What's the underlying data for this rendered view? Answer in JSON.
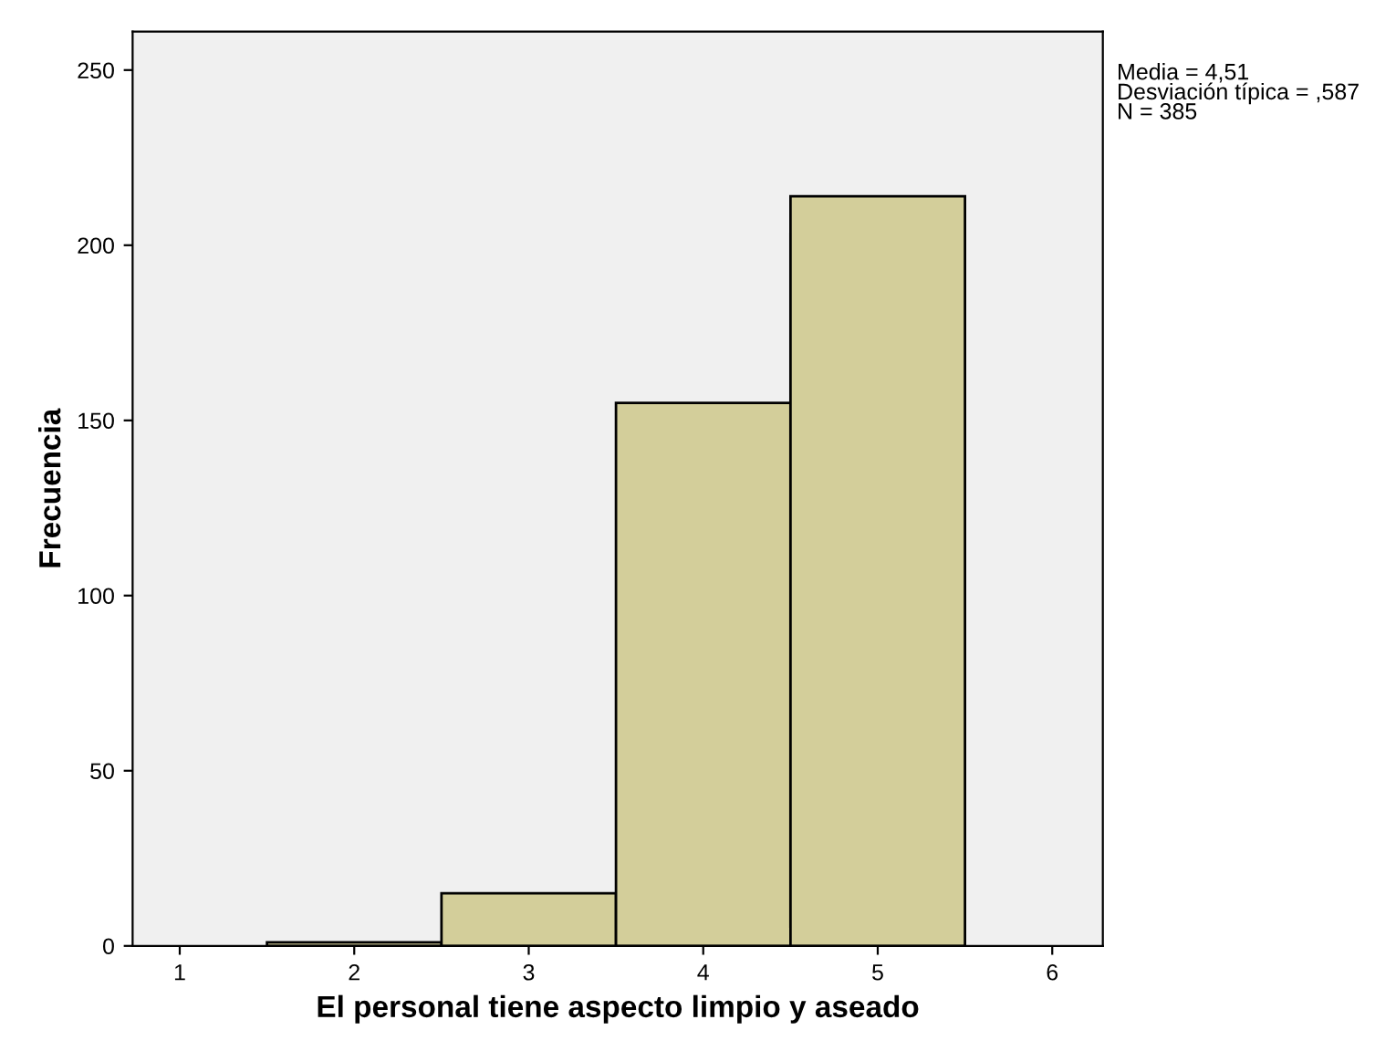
{
  "chart_data": {
    "type": "histogram",
    "xlabel": "El personal tiene aspecto limpio y aseado",
    "ylabel": "Frecuencia",
    "bins": [
      1.5,
      2.5,
      3.5,
      4.5,
      5.5
    ],
    "values": [
      1,
      15,
      155,
      214
    ],
    "color": "#d3ce9a",
    "xlim": [
      0.73,
      6.29
    ],
    "xticks": [
      1,
      2,
      3,
      4,
      5,
      6
    ],
    "ylim": [
      0,
      261
    ],
    "yticks": [
      0,
      50,
      100,
      150,
      200,
      250
    ],
    "grid": false,
    "annotations": [
      "Media = 4,51\nDesviación típica = ,587\nN = 385"
    ]
  }
}
